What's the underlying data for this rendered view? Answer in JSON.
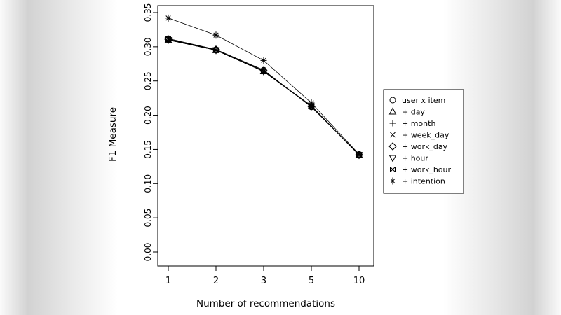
{
  "chart_data": {
    "type": "line",
    "title": "",
    "xlabel": "Number of recommendations",
    "ylabel": "F1 Measure",
    "categories": [
      "1",
      "2",
      "3",
      "5",
      "10"
    ],
    "ylim": [
      0,
      0.35
    ],
    "yticks": [
      "0.00",
      "0.05",
      "0.10",
      "0.15",
      "0.20",
      "0.25",
      "0.30",
      "0.35"
    ],
    "grid": false,
    "legend_position": "right",
    "series": [
      {
        "name": "user x item",
        "marker": "circle",
        "values": [
          0.312,
          0.296,
          0.266,
          0.212,
          0.143
        ]
      },
      {
        "name": "+ day",
        "marker": "triangle-up",
        "values": [
          0.31,
          0.295,
          0.264,
          0.213,
          0.142
        ]
      },
      {
        "name": "+ month",
        "marker": "plus",
        "values": [
          0.31,
          0.295,
          0.264,
          0.213,
          0.142
        ]
      },
      {
        "name": "+ week_day",
        "marker": "x",
        "values": [
          0.311,
          0.295,
          0.264,
          0.214,
          0.142
        ]
      },
      {
        "name": "+ work_day",
        "marker": "diamond",
        "values": [
          0.311,
          0.296,
          0.265,
          0.213,
          0.142
        ]
      },
      {
        "name": "+ hour",
        "marker": "triangle-down",
        "values": [
          0.31,
          0.295,
          0.264,
          0.213,
          0.142
        ]
      },
      {
        "name": "+ work_hour",
        "marker": "square-x",
        "values": [
          0.311,
          0.295,
          0.264,
          0.213,
          0.142
        ]
      },
      {
        "name": "+ intention",
        "marker": "asterisk",
        "values": [
          0.342,
          0.317,
          0.28,
          0.218,
          0.143
        ]
      }
    ],
    "colors": {
      "line": "#000000",
      "plot_background": "#ffffff"
    }
  }
}
